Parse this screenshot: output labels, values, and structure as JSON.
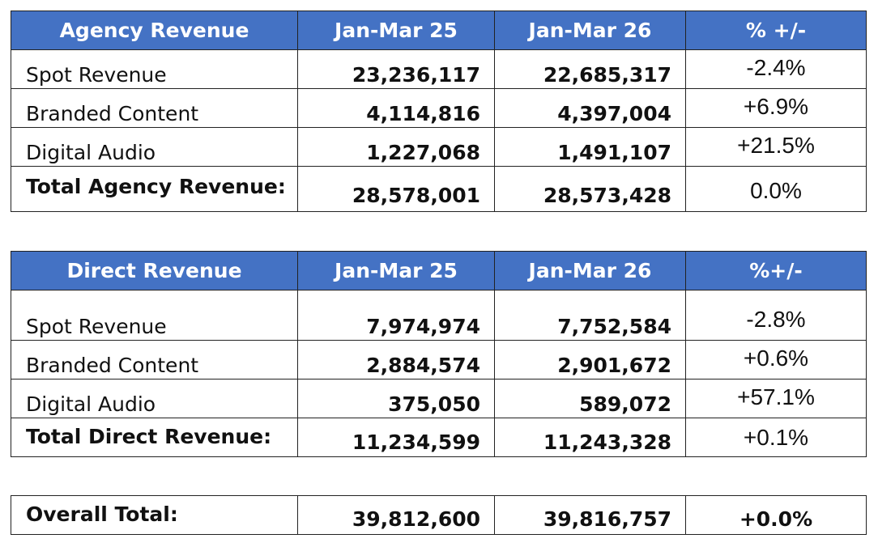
{
  "agency": {
    "headers": [
      "Agency Revenue",
      "Jan-Mar 25",
      "Jan-Mar 26",
      "% +/-"
    ],
    "rows": [
      {
        "label": "Spot Revenue",
        "v25": "23,236,117",
        "v26": "22,685,317",
        "pct": "-2.4%"
      },
      {
        "label": "Branded Content",
        "v25": "4,114,816",
        "v26": "4,397,004",
        "pct": "+6.9%"
      },
      {
        "label": "Digital Audio",
        "v25": "1,227,068",
        "v26": "1,491,107",
        "pct": "+21.5%"
      }
    ],
    "total": {
      "label": "Total Agency Revenue:",
      "v25": "28,578,001",
      "v26": "28,573,428",
      "pct": "0.0%"
    }
  },
  "direct": {
    "headers": [
      "Direct Revenue",
      "Jan-Mar 25",
      "Jan-Mar 26",
      "%+/-"
    ],
    "rows": [
      {
        "label": "Spot Revenue",
        "v25": "7,974,974",
        "v26": "7,752,584",
        "pct": "-2.8%"
      },
      {
        "label": "Branded Content",
        "v25": "2,884,574",
        "v26": "2,901,672",
        "pct": "+0.6%"
      },
      {
        "label": "Digital Audio",
        "v25": "375,050",
        "v26": "589,072",
        "pct": "+57.1%"
      }
    ],
    "total": {
      "label": "Total Direct Revenue:",
      "v25": "11,234,599",
      "v26": "11,243,328",
      "pct": "+0.1%"
    }
  },
  "overall": {
    "label": "Overall Total:",
    "v25": "39,812,600",
    "v26": "39,816,757",
    "pct": "+0.0%"
  },
  "colors": {
    "header_bg": "#4472c4",
    "header_text": "#ffffff",
    "border": "#222222"
  }
}
